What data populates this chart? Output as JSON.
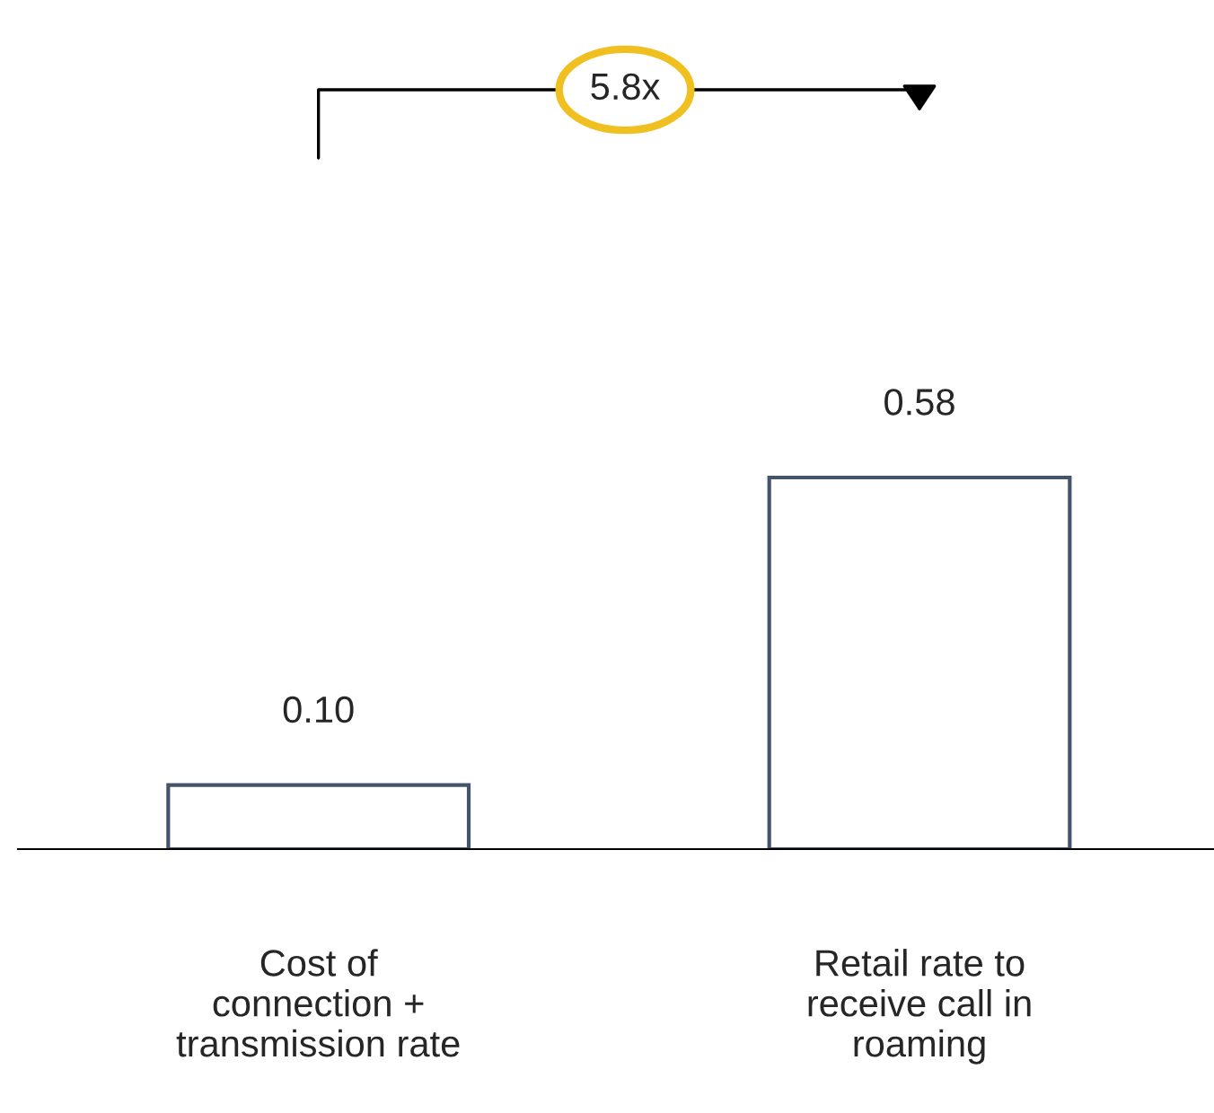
{
  "chart_data": {
    "type": "bar",
    "categories": [
      "Cost of\nconnection +\ntransmission rate",
      "Retail rate to\nreceive call in\nroaming"
    ],
    "values": [
      0.1,
      0.58
    ],
    "value_labels": [
      "0.10",
      "0.58"
    ],
    "color": "#44546a",
    "annotations": [
      "5.8x"
    ],
    "grid": false,
    "legend": false
  }
}
